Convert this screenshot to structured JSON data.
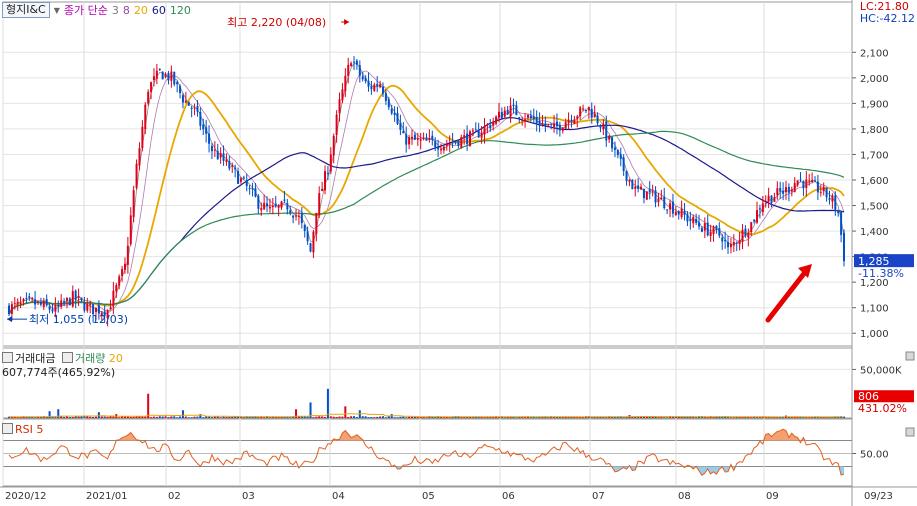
{
  "header": {
    "stock_name": "형지I&C",
    "ma_label": "종가 단순",
    "ma_periods": [
      {
        "value": "3",
        "color": "#7a7a7a"
      },
      {
        "value": "8",
        "color": "#9a4a9a"
      },
      {
        "value": "20",
        "color": "#e8a800"
      },
      {
        "value": "60",
        "color": "#1a1a8c"
      },
      {
        "value": "120",
        "color": "#2e8b57"
      }
    ],
    "lc": "LC:21.80",
    "hc": "HC:-42.12"
  },
  "chart_data": [
    {
      "type": "candlestick",
      "ylim": [
        950,
        2250
      ],
      "yticks": [
        "1,000",
        "1,100",
        "1,200",
        "1,300",
        "1,400",
        "1,500",
        "1,600",
        "1,700",
        "1,800",
        "1,900",
        "2,000",
        "2,100"
      ],
      "ytick_values": [
        1000,
        1100,
        1200,
        1300,
        1400,
        1500,
        1600,
        1700,
        1800,
        1900,
        2000,
        2100
      ],
      "x_labels": [
        "2020/12",
        "2021/01",
        "02",
        "03",
        "04",
        "05",
        "06",
        "07",
        "08",
        "09",
        "09/23"
      ],
      "price_path": [
        [
          0,
          1100
        ],
        [
          8,
          1120
        ],
        [
          16,
          1090
        ],
        [
          22,
          1140
        ],
        [
          28,
          1095
        ],
        [
          34,
          1090
        ],
        [
          40,
          1260
        ],
        [
          44,
          1650
        ],
        [
          48,
          1960
        ],
        [
          52,
          2020
        ],
        [
          56,
          2000
        ],
        [
          60,
          1920
        ],
        [
          64,
          1870
        ],
        [
          70,
          1720
        ],
        [
          76,
          1650
        ],
        [
          82,
          1570
        ],
        [
          86,
          1510
        ],
        [
          90,
          1480
        ],
        [
          96,
          1500
        ],
        [
          100,
          1450
        ],
        [
          104,
          1320
        ],
        [
          106,
          1490
        ],
        [
          110,
          1650
        ],
        [
          114,
          1900
        ],
        [
          118,
          2080
        ],
        [
          121,
          2010
        ],
        [
          124,
          1960
        ],
        [
          128,
          1980
        ],
        [
          132,
          1880
        ],
        [
          136,
          1760
        ],
        [
          142,
          1750
        ],
        [
          150,
          1740
        ],
        [
          156,
          1760
        ],
        [
          160,
          1770
        ],
        [
          166,
          1820
        ],
        [
          172,
          1880
        ],
        [
          180,
          1840
        ],
        [
          188,
          1800
        ],
        [
          194,
          1850
        ],
        [
          200,
          1880
        ],
        [
          204,
          1820
        ],
        [
          210,
          1680
        ],
        [
          216,
          1560
        ],
        [
          222,
          1540
        ],
        [
          228,
          1500
        ],
        [
          234,
          1450
        ],
        [
          240,
          1410
        ],
        [
          246,
          1380
        ],
        [
          248,
          1325
        ],
        [
          252,
          1380
        ],
        [
          256,
          1430
        ],
        [
          260,
          1520
        ],
        [
          264,
          1540
        ],
        [
          268,
          1560
        ],
        [
          272,
          1600
        ],
        [
          276,
          1580
        ],
        [
          280,
          1560
        ],
        [
          284,
          1520
        ],
        [
          286,
          1470
        ],
        [
          288,
          1300
        ]
      ],
      "high": {
        "label": "최고 2,220 (04/08)",
        "value": 2220
      },
      "low": {
        "label": "최저 1,055 (12/03)",
        "value": 1055
      },
      "last_price": "1,285",
      "last_change": "-11.38%"
    },
    {
      "type": "bar",
      "series_names": [
        "거래대금",
        "거래량",
        "20"
      ],
      "readout": "607,774주(465.92%)",
      "yticks": [
        "50,000K"
      ],
      "ytick_values": [
        50000
      ],
      "ylim": [
        0,
        70000
      ],
      "spikes": [
        [
          14,
          7000
        ],
        [
          17,
          9000
        ],
        [
          31,
          6000
        ],
        [
          37,
          4000
        ],
        [
          48,
          25000
        ],
        [
          60,
          8000
        ],
        [
          66,
          4000
        ],
        [
          99,
          9000
        ],
        [
          104,
          16000
        ],
        [
          110,
          30000
        ],
        [
          116,
          12000
        ],
        [
          121,
          8000
        ],
        [
          132,
          4000
        ],
        [
          214,
          3000
        ],
        [
          268,
          2500
        ],
        [
          288,
          1500
        ]
      ],
      "last_value": "806",
      "last_ratio": "431.02%"
    },
    {
      "type": "line",
      "series_names": [
        "RSI",
        "5"
      ],
      "yticks": [
        "50.00"
      ],
      "ytick_values": [
        50
      ],
      "ylim": [
        0,
        100
      ],
      "path": [
        [
          0,
          45
        ],
        [
          6,
          55
        ],
        [
          12,
          40
        ],
        [
          18,
          60
        ],
        [
          24,
          45
        ],
        [
          30,
          50
        ],
        [
          34,
          40
        ],
        [
          38,
          75
        ],
        [
          42,
          82
        ],
        [
          46,
          70
        ],
        [
          50,
          55
        ],
        [
          54,
          60
        ],
        [
          58,
          40
        ],
        [
          62,
          55
        ],
        [
          66,
          30
        ],
        [
          70,
          45
        ],
        [
          76,
          35
        ],
        [
          82,
          50
        ],
        [
          88,
          35
        ],
        [
          94,
          45
        ],
        [
          100,
          30
        ],
        [
          104,
          35
        ],
        [
          108,
          60
        ],
        [
          112,
          70
        ],
        [
          116,
          85
        ],
        [
          120,
          75
        ],
        [
          124,
          60
        ],
        [
          128,
          45
        ],
        [
          132,
          32
        ],
        [
          136,
          28
        ],
        [
          140,
          40
        ],
        [
          146,
          35
        ],
        [
          152,
          50
        ],
        [
          158,
          45
        ],
        [
          164,
          60
        ],
        [
          170,
          55
        ],
        [
          176,
          45
        ],
        [
          182,
          40
        ],
        [
          186,
          50
        ],
        [
          192,
          65
        ],
        [
          198,
          50
        ],
        [
          204,
          40
        ],
        [
          210,
          20
        ],
        [
          216,
          30
        ],
        [
          222,
          45
        ],
        [
          228,
          35
        ],
        [
          234,
          30
        ],
        [
          240,
          20
        ],
        [
          246,
          25
        ],
        [
          250,
          30
        ],
        [
          254,
          45
        ],
        [
          258,
          60
        ],
        [
          262,
          78
        ],
        [
          266,
          82
        ],
        [
          270,
          80
        ],
        [
          274,
          70
        ],
        [
          278,
          60
        ],
        [
          282,
          40
        ],
        [
          286,
          30
        ],
        [
          288,
          15
        ]
      ]
    }
  ]
}
